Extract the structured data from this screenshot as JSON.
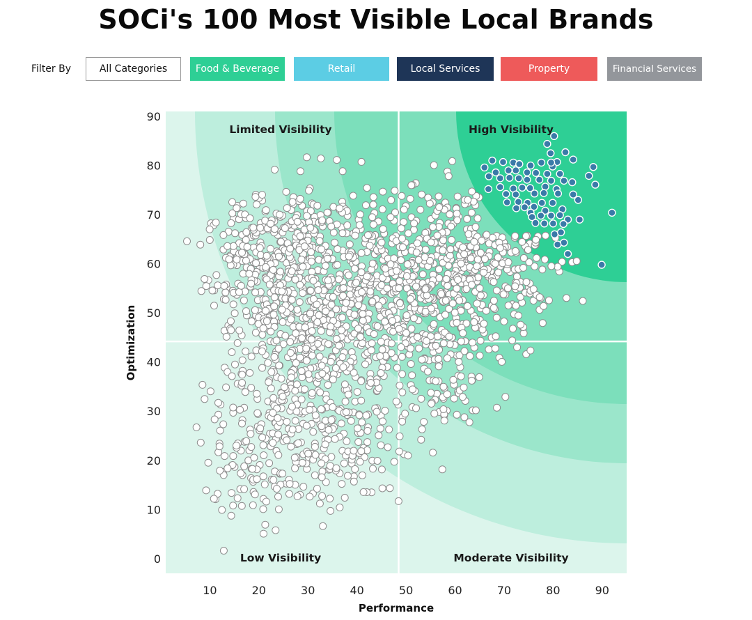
{
  "page": {
    "title": "SOCi's 100 Most Visible Local Brands"
  },
  "filters": {
    "label": "Filter By",
    "buttons": [
      {
        "label": "All Categories",
        "color": "#ffffff"
      },
      {
        "label": "Food & Beverage",
        "color": "#2ecf95"
      },
      {
        "label": "Retail",
        "color": "#5ccde4"
      },
      {
        "label": "Local Services",
        "color": "#1e3557"
      },
      {
        "label": "Property",
        "color": "#ee5a5a"
      },
      {
        "label": "Financial Services",
        "color": "#93969b"
      }
    ]
  },
  "chart_data": {
    "type": "scatter",
    "title": "",
    "xlabel": "Performance",
    "ylabel": "Optimization",
    "xlim": [
      1,
      95
    ],
    "ylim": [
      -3,
      91
    ],
    "xticks": [
      10,
      20,
      30,
      40,
      50,
      60,
      70,
      80,
      90
    ],
    "yticks": [
      0,
      10,
      20,
      30,
      40,
      50,
      60,
      70,
      80,
      90
    ],
    "quadrant_divider": {
      "x": 48.5,
      "y": 44.2
    },
    "quadrants": [
      "Limited Visibility",
      "High Visibility",
      "Low Visibility",
      "Moderate Visibility"
    ],
    "colors": {
      "top100_point": "#3a7aa8",
      "other_point": "#ffffff",
      "band_outer": "#dcf5ec",
      "band_2": "#bdeedd",
      "band_3": "#9be6cb",
      "band_4": "#7cdfbb",
      "band_inner": "#2ecf95"
    },
    "series": [
      {
        "name": "",
        "points": [
          [
            80.2,
            86.0
          ],
          [
            78.8,
            84.4
          ],
          [
            82.5,
            82.7
          ],
          [
            79.5,
            82.5
          ],
          [
            84.1,
            81.2
          ],
          [
            88.2,
            79.7
          ],
          [
            80.8,
            80.7
          ],
          [
            79.9,
            79.8
          ],
          [
            67.6,
            81.0
          ],
          [
            69.8,
            80.7
          ],
          [
            71.9,
            80.6
          ],
          [
            73.1,
            80.3
          ],
          [
            75.4,
            80.0
          ],
          [
            77.6,
            80.6
          ],
          [
            79.6,
            80.6
          ],
          [
            66.0,
            79.6
          ],
          [
            68.3,
            78.6
          ],
          [
            70.9,
            79.0
          ],
          [
            72.4,
            79.0
          ],
          [
            74.7,
            78.6
          ],
          [
            76.5,
            78.5
          ],
          [
            78.8,
            78.3
          ],
          [
            81.4,
            78.3
          ],
          [
            87.3,
            77.9
          ],
          [
            66.9,
            77.8
          ],
          [
            69.2,
            77.4
          ],
          [
            71.1,
            77.5
          ],
          [
            73.0,
            77.4
          ],
          [
            74.7,
            77.1
          ],
          [
            77.2,
            77.1
          ],
          [
            79.6,
            76.9
          ],
          [
            82.2,
            76.9
          ],
          [
            83.9,
            76.6
          ],
          [
            88.6,
            76.1
          ],
          [
            69.2,
            75.6
          ],
          [
            71.9,
            75.3
          ],
          [
            73.7,
            75.5
          ],
          [
            75.3,
            75.4
          ],
          [
            78.4,
            75.7
          ],
          [
            80.7,
            75.2
          ],
          [
            66.8,
            75.2
          ],
          [
            70.4,
            74.2
          ],
          [
            72.4,
            74.1
          ],
          [
            76.2,
            74.3
          ],
          [
            78.1,
            74.4
          ],
          [
            81.0,
            74.3
          ],
          [
            84.1,
            74.1
          ],
          [
            70.6,
            72.5
          ],
          [
            72.9,
            72.6
          ],
          [
            74.8,
            72.4
          ],
          [
            77.7,
            72.4
          ],
          [
            79.9,
            72.4
          ],
          [
            85.1,
            73.0
          ],
          [
            72.5,
            71.3
          ],
          [
            74.2,
            71.5
          ],
          [
            76.1,
            71.6
          ],
          [
            75.4,
            70.4
          ],
          [
            78.4,
            70.8
          ],
          [
            81.9,
            71.1
          ],
          [
            92.0,
            70.4
          ],
          [
            75.7,
            69.5
          ],
          [
            77.5,
            69.8
          ],
          [
            79.6,
            69.8
          ],
          [
            81.4,
            69.9
          ],
          [
            83.0,
            69.0
          ],
          [
            85.4,
            69.0
          ],
          [
            76.4,
            68.3
          ],
          [
            78.2,
            68.2
          ],
          [
            80.0,
            68.2
          ],
          [
            82.1,
            68.1
          ],
          [
            80.3,
            66.0
          ],
          [
            81.6,
            66.4
          ],
          [
            82.2,
            64.3
          ],
          [
            80.9,
            63.9
          ],
          [
            83.0,
            62.0
          ],
          [
            89.9,
            59.8
          ]
        ],
        "color": "#3a7aa8"
      }
    ],
    "point_clouds": [
      {
        "cx": 22,
        "cy": 58,
        "sx": 6.5,
        "sy": 7,
        "n": 260
      },
      {
        "cx": 33,
        "cy": 52,
        "sx": 8,
        "sy": 10,
        "n": 330
      },
      {
        "cx": 46,
        "cy": 50,
        "sx": 9,
        "sy": 11,
        "n": 330
      },
      {
        "cx": 60,
        "cy": 61,
        "sx": 8,
        "sy": 8,
        "n": 300
      },
      {
        "cx": 70,
        "cy": 59,
        "sx": 7,
        "sy": 8,
        "n": 170
      },
      {
        "cx": 30,
        "cy": 33,
        "sx": 7,
        "sy": 9,
        "n": 180
      },
      {
        "cx": 20,
        "cy": 23,
        "sx": 6,
        "sy": 9,
        "n": 150
      },
      {
        "cx": 38,
        "cy": 21,
        "sx": 6,
        "sy": 6,
        "n": 80
      },
      {
        "cx": 57,
        "cy": 41,
        "sx": 6,
        "sy": 8,
        "n": 110
      },
      {
        "cx": 26,
        "cy": 69,
        "sx": 7,
        "sy": 4,
        "n": 80
      }
    ]
  }
}
